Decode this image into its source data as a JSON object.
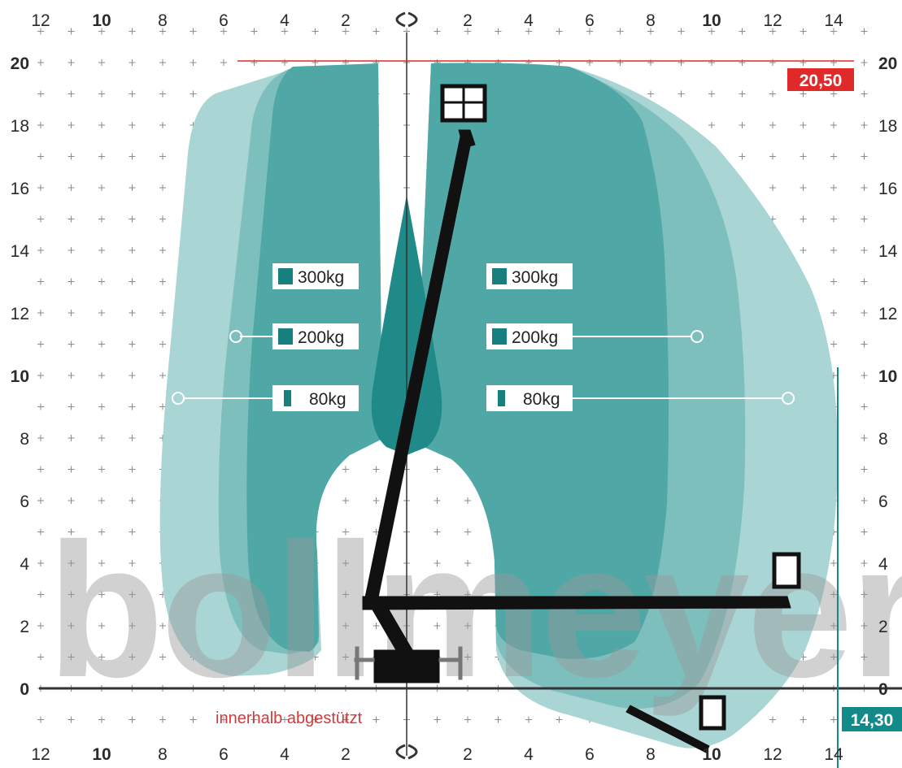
{
  "brand": {
    "watermark": "bollmeyer"
  },
  "axes": {
    "x_ticks_left": [
      "12",
      "10",
      "8",
      "6",
      "4",
      "2"
    ],
    "x_ticks_right": [
      "2",
      "4",
      "6",
      "8",
      "10",
      "12",
      "14"
    ],
    "y_ticks": [
      "20",
      "18",
      "16",
      "14",
      "12",
      "10",
      "8",
      "6",
      "4",
      "2",
      "0"
    ],
    "rotation_icon": "rotation-arrows-icon"
  },
  "limits": {
    "max_height": "20,50",
    "max_outreach": "14,30",
    "height_color": "#e02a2a",
    "outreach_color": "#138a8a"
  },
  "loads": {
    "left": {
      "load_300": "300kg",
      "load_200": "200kg",
      "load_80": "80kg"
    },
    "right": {
      "load_300": "300kg",
      "load_200": "200kg",
      "load_80": "80kg"
    }
  },
  "note": "innerhalb abgestützt",
  "colors": {
    "zone_light": "#a9d6d4",
    "zone_mid": "#7cbfbd",
    "zone_dark": "#4fa8a6",
    "zone_core": "#1f8a88",
    "icon_bg": "#17807e"
  }
}
